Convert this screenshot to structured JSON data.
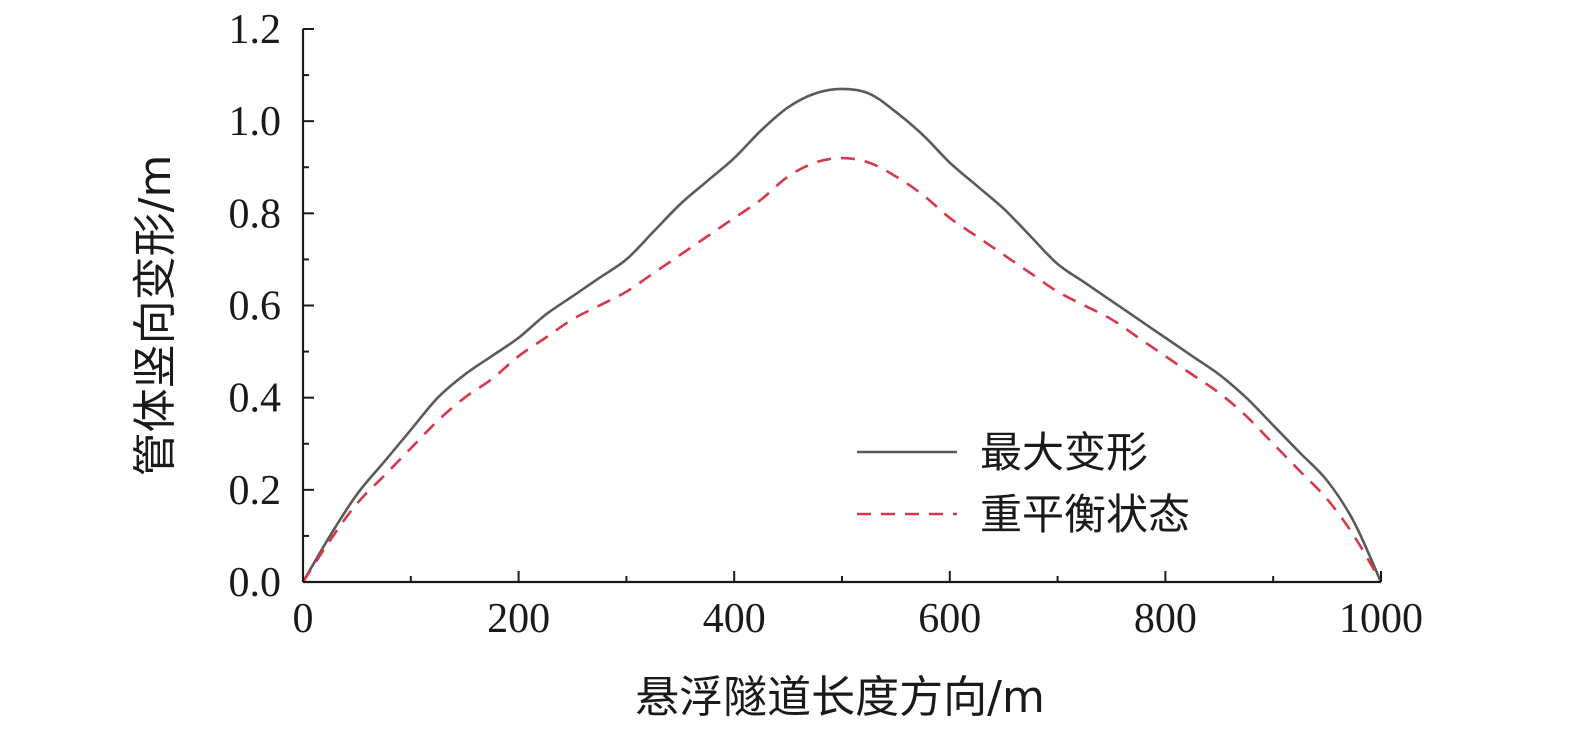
{
  "chart_data": {
    "type": "line",
    "xlabel": "悬浮隧道长度方向/m",
    "ylabel": "管体竖向变形/m",
    "xlim": [
      0,
      1000
    ],
    "ylim": [
      0,
      1.2
    ],
    "x_ticks": [
      0,
      200,
      400,
      600,
      800,
      1000
    ],
    "x_tick_labels": [
      "0",
      "200",
      "400",
      "600",
      "800",
      "1000"
    ],
    "y_ticks": [
      0,
      0.2,
      0.4,
      0.6,
      0.8,
      1.0,
      1.2
    ],
    "y_tick_labels": [
      "0.0",
      "0.2",
      "0.4",
      "0.6",
      "0.8",
      "1.0",
      "1.2"
    ],
    "grid": false,
    "legend_position": "lower-right",
    "x": [
      0,
      25,
      50,
      75,
      100,
      125,
      150,
      175,
      200,
      225,
      250,
      275,
      300,
      325,
      350,
      375,
      400,
      425,
      450,
      475,
      500,
      525,
      550,
      575,
      600,
      625,
      650,
      675,
      700,
      725,
      750,
      775,
      800,
      825,
      850,
      875,
      900,
      925,
      950,
      975,
      1000
    ],
    "series": [
      {
        "name": "最大变形",
        "color": "#5a5a5a",
        "dash": "solid",
        "values": [
          0.0,
          0.1,
          0.19,
          0.26,
          0.33,
          0.4,
          0.45,
          0.49,
          0.53,
          0.58,
          0.62,
          0.66,
          0.7,
          0.76,
          0.82,
          0.87,
          0.92,
          0.98,
          1.03,
          1.06,
          1.07,
          1.06,
          1.02,
          0.97,
          0.91,
          0.86,
          0.81,
          0.75,
          0.69,
          0.65,
          0.61,
          0.57,
          0.53,
          0.49,
          0.45,
          0.4,
          0.34,
          0.28,
          0.22,
          0.13,
          0.0
        ]
      },
      {
        "name": "重平衡状态",
        "color": "#d9384a",
        "dash": "dashed",
        "values": [
          0.0,
          0.09,
          0.17,
          0.23,
          0.29,
          0.35,
          0.4,
          0.44,
          0.49,
          0.53,
          0.57,
          0.6,
          0.63,
          0.67,
          0.71,
          0.75,
          0.79,
          0.83,
          0.88,
          0.91,
          0.92,
          0.91,
          0.88,
          0.84,
          0.79,
          0.75,
          0.71,
          0.67,
          0.63,
          0.6,
          0.57,
          0.53,
          0.49,
          0.45,
          0.41,
          0.36,
          0.3,
          0.24,
          0.18,
          0.1,
          0.0
        ]
      }
    ]
  }
}
